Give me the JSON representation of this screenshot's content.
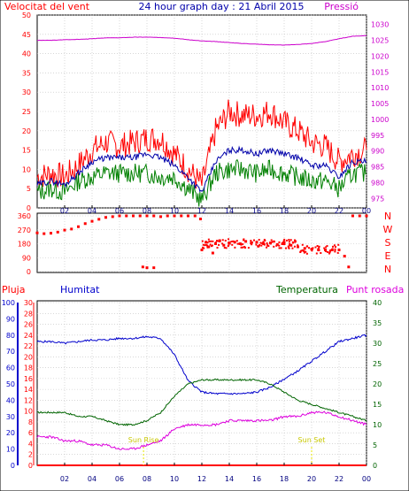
{
  "title": "24 hour graph day : 21 Abril 2015",
  "x_ticks": [
    "02",
    "04",
    "06",
    "08",
    "10",
    "12",
    "14",
    "16",
    "18",
    "20",
    "22",
    "00"
  ],
  "colors": {
    "wind": "#ff0000",
    "gust": "#ff0000",
    "avg": "#0000aa",
    "dir": "#008000",
    "pressure": "#cc00cc",
    "humidity": "#0000cc",
    "temp": "#006400",
    "dew": "#dd00dd",
    "rain": "#ff0000",
    "sun": "#e8e800",
    "grid": "#c0c0c0"
  },
  "chart_data": [
    {
      "type": "line",
      "panel": "wind_pressure",
      "left_label": "Velocitat del vent",
      "right_label": "Pressió",
      "x": [
        0,
        1,
        2,
        3,
        4,
        5,
        6,
        7,
        8,
        9,
        10,
        11,
        12,
        13,
        14,
        15,
        16,
        17,
        18,
        19,
        20,
        21,
        22,
        23,
        24
      ],
      "ylim_left": [
        0,
        50
      ],
      "yticks_left": [
        "0",
        "5",
        "10",
        "15",
        "20",
        "25",
        "30",
        "35",
        "40",
        "45",
        "50"
      ],
      "ylim_right": [
        972,
        1033
      ],
      "yticks_right": [
        "975",
        "980",
        "985",
        "990",
        "995",
        "1000",
        "1005",
        "1010",
        "1015",
        "1020",
        "1025",
        "1030"
      ],
      "series": [
        {
          "key": "gust",
          "values": [
            8,
            9,
            8,
            11,
            15,
            17,
            16,
            17,
            18,
            18,
            14,
            10,
            6,
            20,
            25,
            24,
            24,
            25,
            22,
            20,
            17,
            16,
            12,
            14,
            15
          ]
        },
        {
          "key": "avg",
          "values": [
            6,
            7,
            6,
            9,
            12,
            13,
            13,
            13,
            14,
            13,
            11,
            8,
            4,
            12,
            15,
            15,
            14,
            15,
            14,
            13,
            11,
            11,
            8,
            12,
            12
          ]
        },
        {
          "key": "wind",
          "values": [
            4,
            5,
            4,
            7,
            8,
            9,
            9,
            9,
            9,
            8,
            8,
            5,
            2,
            9,
            10,
            10,
            9,
            10,
            9,
            8,
            7,
            7,
            5,
            9,
            9
          ]
        },
        {
          "key": "pressure",
          "values": [
            1025,
            1025,
            1025.2,
            1025.3,
            1025.5,
            1025.8,
            1025.8,
            1026,
            1026,
            1025.9,
            1025.7,
            1025.2,
            1024.8,
            1024.6,
            1024.3,
            1024,
            1023.8,
            1023.6,
            1023.5,
            1023.7,
            1024,
            1024.6,
            1025.5,
            1026.3,
            1026.5
          ]
        }
      ]
    },
    {
      "type": "scatter",
      "panel": "wind_direction",
      "yticks": [
        "0",
        "90",
        "180",
        "270",
        "360"
      ],
      "ylim": [
        0,
        360
      ],
      "compass": [
        "N",
        "W",
        "S",
        "E",
        "N"
      ],
      "points": [
        [
          0,
          250
        ],
        [
          0.5,
          245
        ],
        [
          1,
          248
        ],
        [
          1.5,
          255
        ],
        [
          2,
          268
        ],
        [
          2.5,
          275
        ],
        [
          3,
          290
        ],
        [
          3.5,
          310
        ],
        [
          4,
          325
        ],
        [
          4.5,
          338
        ],
        [
          5,
          350
        ],
        [
          5.5,
          355
        ],
        [
          6,
          360
        ],
        [
          6.5,
          360
        ],
        [
          7,
          360
        ],
        [
          7.5,
          360
        ],
        [
          8,
          360
        ],
        [
          8.5,
          360
        ],
        [
          9,
          355
        ],
        [
          9.5,
          360
        ],
        [
          10,
          360
        ],
        [
          10.5,
          360
        ],
        [
          11,
          360
        ],
        [
          7.7,
          30
        ],
        [
          8,
          25
        ],
        [
          8.5,
          25
        ],
        [
          11.5,
          360
        ],
        [
          11.9,
          340
        ],
        [
          12,
          140
        ],
        [
          12.3,
          190
        ],
        [
          12.5,
          160
        ],
        [
          12.8,
          120
        ],
        [
          13,
          180
        ],
        [
          13.3,
          200
        ],
        [
          13.6,
          170
        ],
        [
          14,
          185
        ],
        [
          14.4,
          190
        ],
        [
          14.8,
          180
        ],
        [
          15.2,
          195
        ],
        [
          15.6,
          185
        ],
        [
          16,
          190
        ],
        [
          16.5,
          180
        ],
        [
          17,
          185
        ],
        [
          17.5,
          175
        ],
        [
          18,
          180
        ],
        [
          18.5,
          170
        ],
        [
          19,
          160
        ],
        [
          19.5,
          150
        ],
        [
          20,
          145
        ],
        [
          20.5,
          140
        ],
        [
          21,
          140
        ],
        [
          21.5,
          140
        ],
        [
          22,
          140
        ],
        [
          22.4,
          100
        ],
        [
          22.7,
          30
        ],
        [
          23,
          360
        ],
        [
          23.5,
          360
        ],
        [
          24,
          360
        ]
      ]
    },
    {
      "type": "line",
      "panel": "humidity_temp",
      "legend": [
        "Pluja",
        "Humitat",
        "Temperatura",
        "Punt rosada"
      ],
      "ylim_humidity": [
        0,
        100
      ],
      "yticks_humidity": [
        "0",
        "10",
        "20",
        "30",
        "40",
        "50",
        "60",
        "70",
        "80",
        "90",
        "100"
      ],
      "ylim_temp_left": [
        0,
        30
      ],
      "yticks_temp_left": [
        "0",
        "2",
        "4",
        "6",
        "8",
        "10",
        "12",
        "14",
        "16",
        "18",
        "20",
        "22",
        "24",
        "26",
        "28",
        "30"
      ],
      "ylim_temp_right": [
        0,
        40
      ],
      "yticks_temp_right": [
        "0",
        "5",
        "10",
        "15",
        "20",
        "25",
        "30",
        "35",
        "40"
      ],
      "sun_labels": [
        "Sun Rise",
        "Sun Set"
      ],
      "sun_times": [
        7.75,
        20.0
      ],
      "x": [
        0,
        1,
        2,
        3,
        4,
        5,
        6,
        7,
        8,
        9,
        10,
        11,
        12,
        13,
        14,
        15,
        16,
        17,
        18,
        19,
        20,
        21,
        22,
        23,
        24
      ],
      "series": [
        {
          "key": "humidity",
          "values": [
            76,
            76,
            75,
            76,
            77,
            77,
            78,
            78,
            79,
            78,
            68,
            52,
            45,
            44,
            44,
            44,
            45,
            48,
            53,
            58,
            64,
            70,
            76,
            78,
            80
          ]
        },
        {
          "key": "temp",
          "values": [
            13,
            13,
            13,
            12,
            12,
            11,
            10,
            10,
            11,
            13,
            17,
            20,
            21,
            21,
            21,
            21,
            21,
            20,
            18,
            16,
            15,
            14,
            13,
            12,
            11
          ]
        },
        {
          "key": "dew",
          "values": [
            7,
            7,
            6,
            6,
            5,
            5,
            4,
            4,
            5,
            6,
            9,
            10,
            10,
            10,
            11,
            11,
            11,
            11,
            12,
            12,
            13,
            13,
            12,
            11,
            10
          ]
        },
        {
          "key": "rain",
          "values": [
            0,
            0,
            0,
            0,
            0,
            0,
            0,
            0,
            0,
            0,
            0,
            0,
            0,
            0,
            0,
            0,
            0,
            0,
            0,
            0,
            0,
            0,
            0,
            0,
            0
          ]
        }
      ]
    }
  ]
}
